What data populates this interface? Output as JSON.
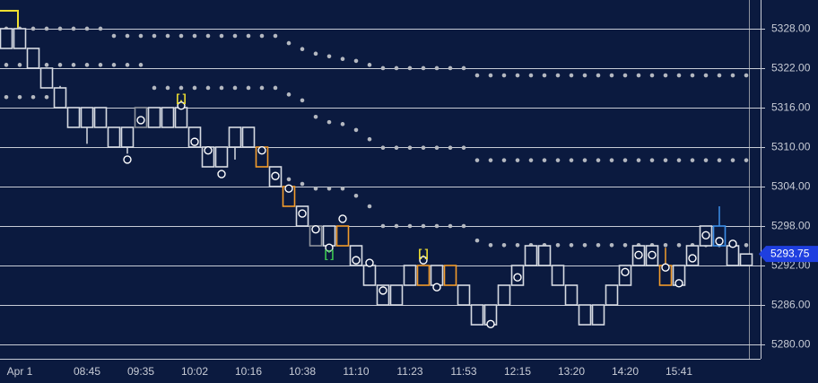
{
  "chart_data": {
    "type": "boxbars",
    "background": "#0b1a3f",
    "grid": true,
    "ylim": [
      5277.82,
      5332.36
    ],
    "yticks": [
      {
        "value": 5280,
        "label": "5280.00"
      },
      {
        "value": 5286,
        "label": "5286.00"
      },
      {
        "value": 5292,
        "label": "5292.00"
      },
      {
        "value": 5298,
        "label": "5298.00"
      },
      {
        "value": 5304,
        "label": "5304.00"
      },
      {
        "value": 5310,
        "label": "5310.00"
      },
      {
        "value": 5316,
        "label": "5316.00"
      },
      {
        "value": 5322,
        "label": "5322.00"
      },
      {
        "value": 5328,
        "label": "5328.00"
      }
    ],
    "categories": [
      null,
      "Apr 1",
      null,
      null,
      null,
      null,
      "08:45",
      null,
      null,
      null,
      "09:35",
      null,
      null,
      null,
      "10:02",
      null,
      null,
      null,
      "10:16",
      null,
      null,
      null,
      "10:38",
      null,
      null,
      null,
      "11:10",
      null,
      null,
      null,
      "11:23",
      null,
      null,
      null,
      "11:53",
      null,
      null,
      null,
      "12:15",
      null,
      null,
      null,
      "13:20",
      null,
      null,
      null,
      "14:20",
      null,
      null,
      null,
      "15:41",
      null,
      null,
      null,
      null,
      null
    ],
    "top": [
      5328,
      5328,
      5325,
      5322,
      5319,
      5316,
      5316,
      5316,
      5313,
      5313,
      5316,
      5316,
      5316,
      5316,
      5313,
      5310,
      5310,
      5313,
      5313,
      5310,
      5307,
      5304,
      5301,
      5298,
      5298,
      5298,
      5295,
      5292,
      5289,
      5289,
      5292,
      5292,
      5292,
      5292,
      5289,
      5286,
      5286,
      5289,
      5292,
      5295,
      5295,
      5292,
      5289,
      5286,
      5286,
      5289,
      5292,
      5295,
      5295,
      5292,
      5292,
      5295,
      5298,
      5298,
      5295,
      5293.75
    ],
    "bottom": [
      5325,
      5325,
      5322,
      5319,
      5316,
      5313,
      5313,
      5313,
      5310,
      5310,
      5313,
      5313,
      5313,
      5313,
      5310,
      5307,
      5307,
      5310,
      5310,
      5307,
      5304,
      5301,
      5298,
      5295,
      5295,
      5295,
      5292,
      5289,
      5286,
      5286,
      5289,
      5289,
      5289,
      5289,
      5286,
      5283,
      5283,
      5286,
      5289,
      5292,
      5292,
      5289,
      5286,
      5283,
      5283,
      5286,
      5289,
      5292,
      5292,
      5289,
      5289,
      5292,
      5295,
      5295,
      5292,
      5292
    ],
    "high": [
      null,
      null,
      null,
      null,
      5319.3,
      null,
      null,
      null,
      null,
      null,
      null,
      null,
      null,
      null,
      null,
      null,
      null,
      null,
      null,
      null,
      null,
      null,
      null,
      null,
      null,
      null,
      null,
      null,
      null,
      null,
      null,
      null,
      null,
      null,
      null,
      null,
      null,
      null,
      null,
      null,
      null,
      null,
      null,
      null,
      null,
      null,
      null,
      null,
      null,
      5294.7,
      null,
      null,
      null,
      5301.0,
      null,
      null
    ],
    "low": [
      null,
      null,
      null,
      null,
      null,
      null,
      5310.5,
      null,
      null,
      5309.0,
      null,
      null,
      null,
      null,
      null,
      null,
      null,
      5308.1,
      null,
      null,
      null,
      null,
      null,
      null,
      null,
      null,
      null,
      null,
      null,
      null,
      null,
      null,
      null,
      null,
      null,
      null,
      null,
      null,
      null,
      null,
      null,
      null,
      null,
      null,
      null,
      null,
      null,
      null,
      null,
      null,
      null,
      null,
      null,
      null,
      null,
      null
    ],
    "colors": [
      "#d6dae2",
      "#d6dae2",
      "#d6dae2",
      "#d6dae2",
      "#d6dae2",
      "#d6dae2",
      "#d6dae2",
      "#d6dae2",
      "#d6dae2",
      "#d6dae2",
      "#8e939c",
      "#d6dae2",
      "#d6dae2",
      "#d6dae2",
      "#d6dae2",
      "#d6dae2",
      "#d6dae2",
      "#d6dae2",
      "#d6dae2",
      "#f39c2b",
      "#d6dae2",
      "#f39c2b",
      "#d6dae2",
      "#8e939c",
      "#d6dae2",
      "#f39c2b",
      "#d6dae2",
      "#d6dae2",
      "#d6dae2",
      "#d6dae2",
      "#d6dae2",
      "#f39c2b",
      "#d6dae2",
      "#f39c2b",
      "#d6dae2",
      "#d6dae2",
      "#d6dae2",
      "#d6dae2",
      "#d6dae2",
      "#d6dae2",
      "#d6dae2",
      "#d6dae2",
      "#d6dae2",
      "#d6dae2",
      "#d6dae2",
      "#d6dae2",
      "#d6dae2",
      "#d6dae2",
      "#d6dae2",
      "#f39c2b",
      "#d6dae2",
      "#d6dae2",
      "#d6dae2",
      "#3d8fe8",
      "#d6dae2",
      "#d6dae2"
    ],
    "markers": [
      null,
      null,
      null,
      null,
      null,
      null,
      null,
      null,
      null,
      5308.1,
      5314.1,
      null,
      null,
      5316.3,
      5310.8,
      5309.5,
      5305.9,
      null,
      null,
      5309.5,
      5305.6,
      5303.7,
      5299.9,
      5297.5,
      5294.7,
      5299.1,
      5292.8,
      5292.4,
      5288.2,
      null,
      null,
      5292.8,
      5288.7,
      null,
      null,
      null,
      5283.1,
      null,
      5290.2,
      null,
      null,
      null,
      null,
      null,
      null,
      null,
      5291.0,
      5293.6,
      5293.6,
      5291.7,
      5289.3,
      5293.1,
      5296.6,
      5295.7,
      5295.3,
      null
    ],
    "bands": [
      {
        "color": "#b4b8c0",
        "values": [
          5328.0,
          5328.0,
          5328.0,
          5328.0,
          5328.0,
          5328.0,
          5328.0,
          5328.0,
          5326.9,
          5326.9,
          5326.9,
          5326.9,
          5326.9,
          5326.9,
          5326.9,
          5326.9,
          5326.9,
          5326.9,
          5326.9,
          5326.9,
          5326.9,
          5325.8,
          5324.9,
          5324.2,
          5323.8,
          5323.4,
          5323.1,
          5322.5,
          5322.0,
          5322.0,
          5322.0,
          5322.0,
          5322.0,
          5322.0,
          5322.0,
          5320.9,
          5320.9,
          5320.9,
          5320.9,
          5320.9,
          5320.9,
          5320.9,
          5320.9,
          5320.9,
          5320.9,
          5320.9,
          5320.9,
          5320.9,
          5320.9,
          5320.9,
          5320.9,
          5320.9,
          5320.9,
          5320.9,
          5320.9,
          5320.9
        ]
      },
      {
        "color": "#b4b8c0",
        "values": [
          5322.5,
          5322.5,
          5322.5,
          5322.5,
          5322.5,
          5322.5,
          5322.5,
          5322.5,
          5322.5,
          5322.5,
          5322.5,
          5319.0,
          5319.0,
          5319.0,
          5319.0,
          5319.0,
          5319.0,
          5319.0,
          5319.0,
          5319.0,
          5319.0,
          5318.0,
          5317.1,
          5314.6,
          5313.8,
          5313.5,
          5312.6,
          5311.2,
          5309.9,
          5309.9,
          5309.9,
          5309.9,
          5309.9,
          5309.9,
          5309.9,
          5308.0,
          5308.0,
          5308.0,
          5308.0,
          5308.0,
          5308.0,
          5308.0,
          5308.0,
          5308.0,
          5308.0,
          5308.0,
          5308.0,
          5308.0,
          5308.0,
          5308.0,
          5308.0,
          5308.0,
          5308.0,
          5308.0,
          5308.0,
          5308.0
        ]
      },
      {
        "color": "#b4b8c0",
        "values": [
          5317.6,
          5317.6,
          5317.6,
          5317.6,
          null,
          null,
          null,
          null,
          null,
          null,
          null,
          null,
          null,
          null,
          null,
          null,
          null,
          null,
          null,
          null,
          null,
          5305.1,
          5304.4,
          5303.7,
          5303.7,
          5303.7,
          5302.6,
          5301.0,
          5298.0,
          5298.0,
          5298.0,
          5298.0,
          5298.0,
          5298.0,
          5298.0,
          5295.8,
          5295.1,
          5295.1,
          5295.1,
          5295.1,
          5295.1,
          5295.1,
          5295.1,
          5295.1,
          5295.1,
          5295.1,
          5295.1,
          5295.1,
          5295.1,
          5295.1,
          5295.1,
          5295.1,
          5295.1,
          5295.1,
          5295.1,
          5295.1
        ]
      }
    ],
    "annotations": [
      {
        "text": "[.]",
        "color": "#f0e030",
        "bar": 13,
        "value": 5317.3
      },
      {
        "text": "[']",
        "color": "#3cc850",
        "bar": 24,
        "value": 5293.6
      },
      {
        "text": "[.]",
        "color": "#f0e030",
        "bar": 31,
        "value": 5293.7
      }
    ],
    "last_price": {
      "value": 5293.75,
      "label": "5293.75",
      "color": "#1f3fe0"
    }
  }
}
